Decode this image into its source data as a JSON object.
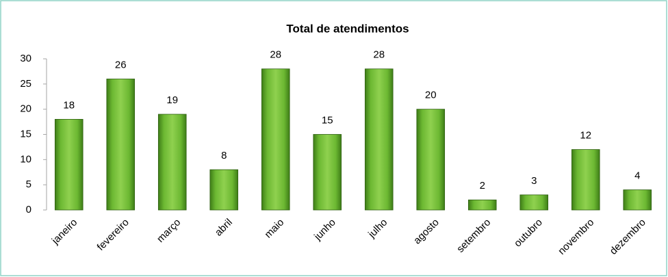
{
  "chart_data": {
    "type": "bar",
    "title": "Total de atendimentos",
    "categories": [
      "janeiro",
      "fevereiro",
      "março",
      "abril",
      "maio",
      "junho",
      "julho",
      "agosto",
      "setembro",
      "outubro",
      "novembro",
      "dezembro"
    ],
    "values": [
      18,
      26,
      19,
      8,
      28,
      15,
      28,
      20,
      2,
      3,
      12,
      4
    ],
    "color": "#6ab531",
    "ylim": [
      0,
      30
    ],
    "yticks": [
      0,
      5,
      10,
      15,
      20,
      25,
      30
    ],
    "grid": false
  }
}
